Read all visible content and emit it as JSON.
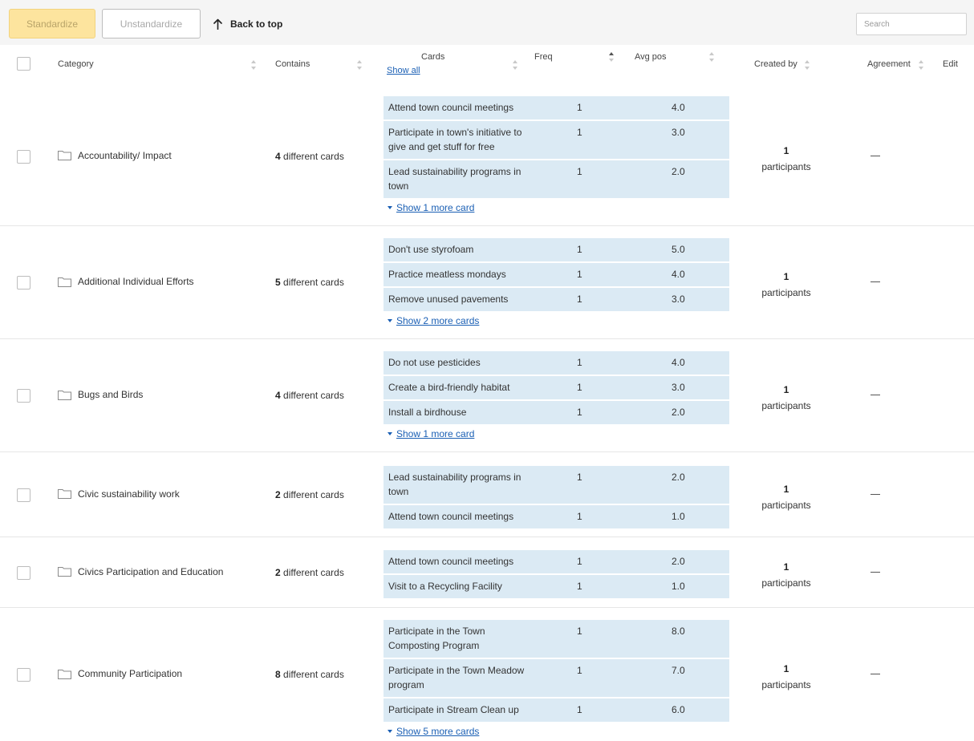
{
  "toolbar": {
    "standardize": "Standardize",
    "unstandardize": "Unstandardize",
    "back_to_top": "Back to top",
    "search_placeholder": "Search"
  },
  "headers": {
    "category": "Category",
    "contains": "Contains",
    "cards": "Cards",
    "show_all": "Show all",
    "freq": "Freq",
    "avg_pos": "Avg pos",
    "created_by": "Created by",
    "agreement": "Agreement",
    "edit": "Edit"
  },
  "rows": [
    {
      "category": "Accountability/ Impact",
      "contains_count": "4",
      "contains_suffix": " different cards",
      "cards": [
        {
          "title": "Attend town council meetings",
          "freq": "1",
          "avg": "4.0"
        },
        {
          "title": "Participate in town's initiative to give and get stuff for free",
          "freq": "1",
          "avg": "3.0"
        },
        {
          "title": "Lead sustainability programs in town",
          "freq": "1",
          "avg": "2.0"
        }
      ],
      "more": "Show 1 more card",
      "created_count": "1",
      "created_label": "participants"
    },
    {
      "category": "Additional Individual Efforts",
      "contains_count": "5",
      "contains_suffix": " different cards",
      "cards": [
        {
          "title": "Don't use styrofoam",
          "freq": "1",
          "avg": "5.0"
        },
        {
          "title": "Practice meatless mondays",
          "freq": "1",
          "avg": "4.0"
        },
        {
          "title": "Remove unused pavements",
          "freq": "1",
          "avg": "3.0"
        }
      ],
      "more": "Show 2 more cards",
      "created_count": "1",
      "created_label": "participants"
    },
    {
      "category": "Bugs and Birds",
      "contains_count": "4",
      "contains_suffix": " different cards",
      "cards": [
        {
          "title": "Do not use pesticides",
          "freq": "1",
          "avg": "4.0"
        },
        {
          "title": "Create a bird-friendly habitat",
          "freq": "1",
          "avg": "3.0"
        },
        {
          "title": "Install a birdhouse",
          "freq": "1",
          "avg": "2.0"
        }
      ],
      "more": "Show 1 more card",
      "created_count": "1",
      "created_label": "participants"
    },
    {
      "category": "Civic sustainability work",
      "contains_count": "2",
      "contains_suffix": " different cards",
      "cards": [
        {
          "title": "Lead sustainability programs in town",
          "freq": "1",
          "avg": "2.0"
        },
        {
          "title": "Attend town council meetings",
          "freq": "1",
          "avg": "1.0"
        }
      ],
      "more": "",
      "created_count": "1",
      "created_label": "participants"
    },
    {
      "category": "Civics Participation and Education",
      "contains_count": "2",
      "contains_suffix": " different cards",
      "cards": [
        {
          "title": "Attend town council meetings",
          "freq": "1",
          "avg": "2.0"
        },
        {
          "title": "Visit to a Recycling Facility",
          "freq": "1",
          "avg": "1.0"
        }
      ],
      "more": "",
      "created_count": "1",
      "created_label": "participants"
    },
    {
      "category": "Community Participation",
      "contains_count": "8",
      "contains_suffix": " different cards",
      "cards": [
        {
          "title": "Participate in the Town Composting Program",
          "freq": "1",
          "avg": "8.0"
        },
        {
          "title": "Participate in the Town Meadow program",
          "freq": "1",
          "avg": "7.0"
        },
        {
          "title": "Participate in Stream Clean up",
          "freq": "1",
          "avg": "6.0"
        }
      ],
      "more": "Show 5 more cards",
      "created_count": "1",
      "created_label": "participants"
    }
  ]
}
